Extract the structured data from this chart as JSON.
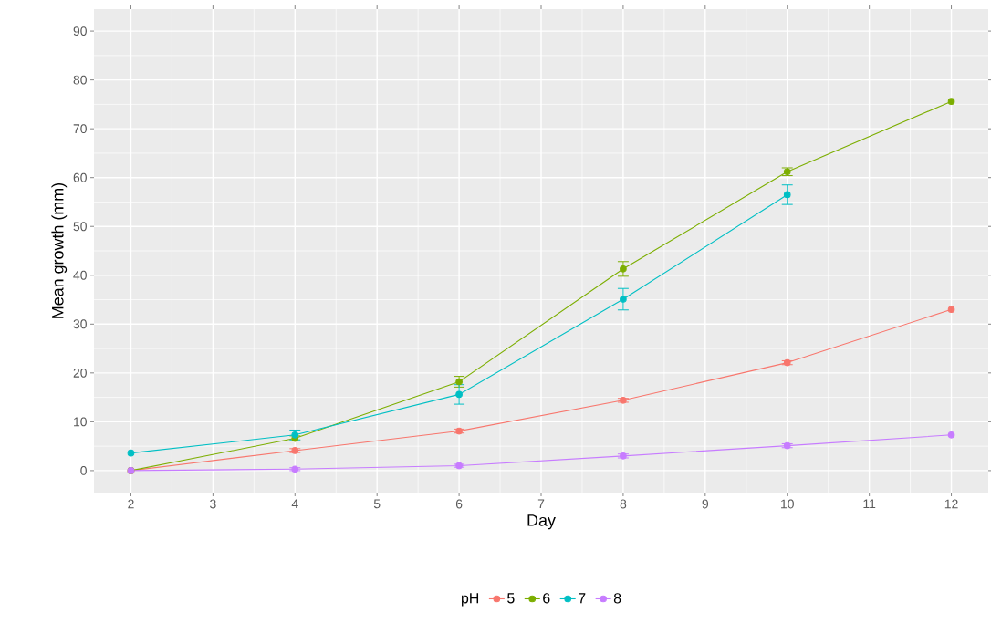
{
  "chart_data": {
    "type": "line",
    "xlabel": "Day",
    "ylabel": "Mean growth (mm)",
    "legend_title": "pH",
    "x": [
      2,
      4,
      6,
      8,
      10,
      12
    ],
    "series": [
      {
        "name": "5",
        "color": "#f8766d",
        "values": [
          0,
          4.1,
          8.1,
          14.4,
          22.1,
          33.0
        ],
        "errors": [
          null,
          0.4,
          0.4,
          0.4,
          0.4,
          null
        ]
      },
      {
        "name": "6",
        "color": "#7cae00",
        "values": [
          0,
          6.6,
          18.2,
          41.3,
          61.2,
          75.6
        ],
        "errors": [
          null,
          0.5,
          1.1,
          1.5,
          0.8,
          null
        ]
      },
      {
        "name": "7",
        "color": "#00bfc4",
        "values": [
          3.6,
          7.3,
          15.6,
          35.1,
          56.5,
          null
        ],
        "errors": [
          null,
          1.0,
          2.0,
          2.2,
          2.0,
          null
        ]
      },
      {
        "name": "8",
        "color": "#c77cff",
        "values": [
          0,
          0.3,
          1.0,
          3.0,
          5.1,
          7.3
        ],
        "errors": [
          null,
          0.3,
          0.3,
          0.4,
          0.4,
          null
        ]
      }
    ],
    "xlim": [
      1.55,
      12.45
    ],
    "ylim": [
      -4.5,
      94.5
    ],
    "xticks": [
      2,
      3,
      4,
      5,
      6,
      7,
      8,
      9,
      10,
      11,
      12
    ],
    "yticks": [
      0,
      10,
      20,
      30,
      40,
      50,
      60,
      70,
      80,
      90
    ],
    "grid": true,
    "legend": "bottom",
    "marker": "circle",
    "line_style": "solid"
  }
}
